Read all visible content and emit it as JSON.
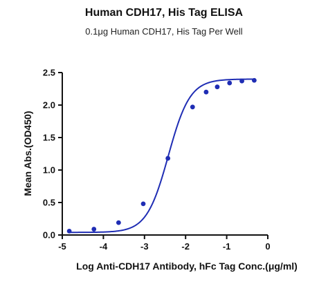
{
  "chart_data": {
    "type": "scatter",
    "title": "Human CDH17, His Tag ELISA",
    "subtitle": "0.1μg Human CDH17, His Tag Per Well",
    "xlabel": "Log Anti-CDH17 Antibody, hFc Tag Conc.(μg/ml)",
    "ylabel": "Mean Abs.(OD450)",
    "xlim": [
      -5,
      0
    ],
    "ylim": [
      0,
      2.5
    ],
    "x_ticks": [
      "-5",
      "-4",
      "-3",
      "-2",
      "-1",
      "0"
    ],
    "y_ticks": [
      "0.0",
      "0.5",
      "1.0",
      "1.5",
      "2.0",
      "2.5"
    ],
    "grid": false,
    "colors": {
      "series": "#1f2db4"
    },
    "series": [
      {
        "x": [
          -4.83,
          -4.23,
          -3.63,
          -3.03,
          -2.43,
          -1.83,
          -1.5,
          -1.23,
          -0.93,
          -0.63,
          -0.33
        ],
        "values": [
          0.06,
          0.09,
          0.19,
          0.48,
          1.18,
          1.97,
          2.2,
          2.28,
          2.34,
          2.37,
          2.38
        ],
        "fit": "four-parameter logistic curve"
      }
    ]
  }
}
